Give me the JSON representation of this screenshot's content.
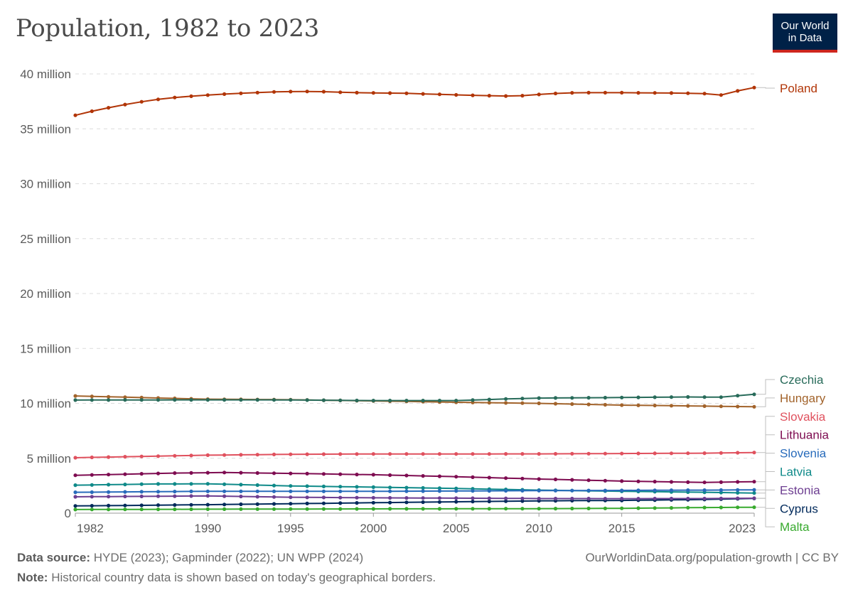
{
  "title": "Population, 1982 to 2023",
  "logo": {
    "line1": "Our World",
    "line2": "in Data"
  },
  "footer": {
    "source_label": "Data source:",
    "source_text": "HYDE (2023); Gapminder (2022); UN WPP (2024)",
    "note_label": "Note:",
    "note_text": "Historical country data is shown based on today's geographical borders.",
    "url": "OurWorldinData.org/population-growth | CC BY"
  },
  "chart_data": {
    "type": "line",
    "xlim": [
      1982,
      2023
    ],
    "ylim": [
      0,
      40000000
    ],
    "x_ticks": [
      1982,
      1990,
      1995,
      2000,
      2005,
      2010,
      2015,
      2023
    ],
    "y_ticks": [
      {
        "value": 0,
        "label": "0"
      },
      {
        "value": 5000000,
        "label": "5 million"
      },
      {
        "value": 10000000,
        "label": "10 million"
      },
      {
        "value": 15000000,
        "label": "15 million"
      },
      {
        "value": 20000000,
        "label": "20 million"
      },
      {
        "value": 25000000,
        "label": "25 million"
      },
      {
        "value": 30000000,
        "label": "30 million"
      },
      {
        "value": 35000000,
        "label": "35 million"
      },
      {
        "value": 40000000,
        "label": "40 million"
      }
    ],
    "grid": true,
    "legend": "right",
    "series": [
      {
        "name": "Poland",
        "color": "#b13507",
        "anchors": [
          [
            1982,
            36230000
          ],
          [
            1983,
            36600000
          ],
          [
            1984,
            36920000
          ],
          [
            1985,
            37210000
          ],
          [
            1986,
            37460000
          ],
          [
            1987,
            37680000
          ],
          [
            1988,
            37850000
          ],
          [
            1989,
            37970000
          ],
          [
            1990,
            38070000
          ],
          [
            1991,
            38160000
          ],
          [
            1992,
            38230000
          ],
          [
            1993,
            38300000
          ],
          [
            1994,
            38360000
          ],
          [
            1995,
            38390000
          ],
          [
            1996,
            38400000
          ],
          [
            1997,
            38380000
          ],
          [
            1998,
            38330000
          ],
          [
            1999,
            38290000
          ],
          [
            2000,
            38270000
          ],
          [
            2001,
            38250000
          ],
          [
            2002,
            38230000
          ],
          [
            2003,
            38180000
          ],
          [
            2004,
            38140000
          ],
          [
            2005,
            38090000
          ],
          [
            2006,
            38050000
          ],
          [
            2007,
            38020000
          ],
          [
            2008,
            37990000
          ],
          [
            2009,
            38020000
          ],
          [
            2010,
            38130000
          ],
          [
            2011,
            38220000
          ],
          [
            2012,
            38280000
          ],
          [
            2013,
            38290000
          ],
          [
            2014,
            38290000
          ],
          [
            2015,
            38290000
          ],
          [
            2016,
            38280000
          ],
          [
            2017,
            38270000
          ],
          [
            2018,
            38260000
          ],
          [
            2019,
            38240000
          ],
          [
            2020,
            38210000
          ],
          [
            2021,
            38080000
          ],
          [
            2022,
            38450000
          ],
          [
            2023,
            38760000
          ]
        ]
      },
      {
        "name": "Czechia",
        "color": "#286b5a",
        "anchors": [
          [
            1982,
            10300000
          ],
          [
            1990,
            10320000
          ],
          [
            1995,
            10310000
          ],
          [
            2000,
            10250000
          ],
          [
            2005,
            10250000
          ],
          [
            2008,
            10400000
          ],
          [
            2010,
            10480000
          ],
          [
            2015,
            10530000
          ],
          [
            2019,
            10580000
          ],
          [
            2021,
            10560000
          ],
          [
            2022,
            10700000
          ],
          [
            2023,
            10820000
          ]
        ]
      },
      {
        "name": "Hungary",
        "color": "#a2632b",
        "anchors": [
          [
            1982,
            10670000
          ],
          [
            1985,
            10560000
          ],
          [
            1990,
            10380000
          ],
          [
            1995,
            10330000
          ],
          [
            2000,
            10220000
          ],
          [
            2005,
            10100000
          ],
          [
            2010,
            10000000
          ],
          [
            2015,
            9840000
          ],
          [
            2020,
            9750000
          ],
          [
            2023,
            9690000
          ]
        ]
      },
      {
        "name": "Slovakia",
        "color": "#e0515e",
        "anchors": [
          [
            1982,
            5050000
          ],
          [
            1990,
            5280000
          ],
          [
            1995,
            5360000
          ],
          [
            2000,
            5390000
          ],
          [
            2005,
            5390000
          ],
          [
            2010,
            5400000
          ],
          [
            2015,
            5430000
          ],
          [
            2020,
            5460000
          ],
          [
            2023,
            5520000
          ]
        ]
      },
      {
        "name": "Lithuania",
        "color": "#7e0c51",
        "anchors": [
          [
            1982,
            3450000
          ],
          [
            1988,
            3650000
          ],
          [
            1991,
            3700000
          ],
          [
            1995,
            3620000
          ],
          [
            2000,
            3500000
          ],
          [
            2005,
            3320000
          ],
          [
            2010,
            3110000
          ],
          [
            2015,
            2920000
          ],
          [
            2020,
            2800000
          ],
          [
            2023,
            2870000
          ]
        ]
      },
      {
        "name": "Slovenia",
        "color": "#286bbb",
        "anchors": [
          [
            1982,
            1900000
          ],
          [
            1990,
            1990000
          ],
          [
            2000,
            1990000
          ],
          [
            2010,
            2050000
          ],
          [
            2015,
            2070000
          ],
          [
            2020,
            2100000
          ],
          [
            2023,
            2120000
          ]
        ]
      },
      {
        "name": "Latvia",
        "color": "#0f8a89",
        "anchors": [
          [
            1982,
            2550000
          ],
          [
            1987,
            2660000
          ],
          [
            1990,
            2670000
          ],
          [
            1995,
            2480000
          ],
          [
            2000,
            2370000
          ],
          [
            2005,
            2250000
          ],
          [
            2010,
            2100000
          ],
          [
            2015,
            1990000
          ],
          [
            2020,
            1900000
          ],
          [
            2023,
            1830000
          ]
        ]
      },
      {
        "name": "Estonia",
        "color": "#6d3e91",
        "anchors": [
          [
            1982,
            1490000
          ],
          [
            1990,
            1570000
          ],
          [
            1995,
            1450000
          ],
          [
            2000,
            1400000
          ],
          [
            2010,
            1330000
          ],
          [
            2015,
            1320000
          ],
          [
            2020,
            1330000
          ],
          [
            2023,
            1360000
          ]
        ]
      },
      {
        "name": "Cyprus",
        "color": "#00295b",
        "anchors": [
          [
            1982,
            660000
          ],
          [
            1990,
            770000
          ],
          [
            2000,
            950000
          ],
          [
            2010,
            1120000
          ],
          [
            2015,
            1160000
          ],
          [
            2020,
            1240000
          ],
          [
            2023,
            1340000
          ]
        ]
      },
      {
        "name": "Malta",
        "color": "#38aa2e",
        "anchors": [
          [
            1982,
            330000
          ],
          [
            1990,
            360000
          ],
          [
            2000,
            390000
          ],
          [
            2010,
            410000
          ],
          [
            2015,
            440000
          ],
          [
            2020,
            510000
          ],
          [
            2023,
            540000
          ]
        ]
      }
    ]
  }
}
